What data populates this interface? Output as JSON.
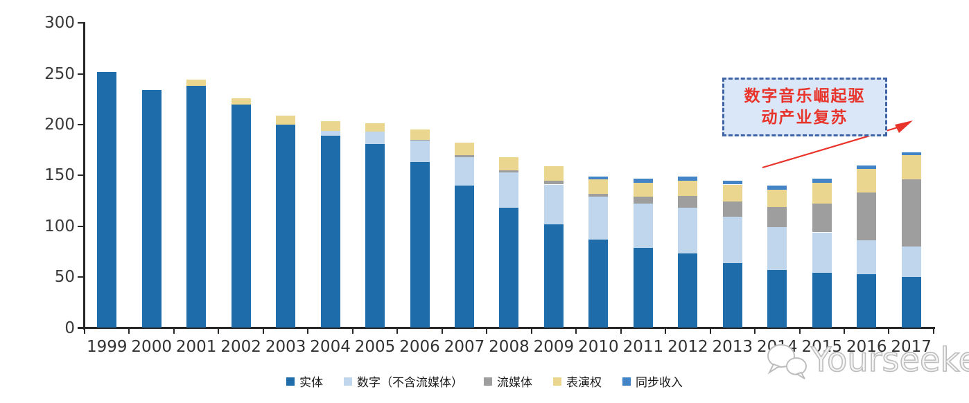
{
  "chart_data": {
    "type": "bar",
    "stacked": true,
    "title": "",
    "xlabel": "",
    "ylabel": "",
    "ylim": [
      0,
      300
    ],
    "yticks": [
      0,
      50,
      100,
      150,
      200,
      250,
      300
    ],
    "grid": "off",
    "legend_position": "bottom",
    "categories": [
      "1999",
      "2000",
      "2001",
      "2002",
      "2003",
      "2004",
      "2005",
      "2006",
      "2007",
      "2008",
      "2009",
      "2010",
      "2011",
      "2012",
      "2013",
      "2014",
      "2015",
      "2016",
      "2017"
    ],
    "series": [
      {
        "key": "physical",
        "name": "实体",
        "color": "#1F6CAB",
        "values": [
          252,
          234,
          238,
          220,
          200,
          189,
          181,
          163,
          140,
          118,
          102,
          87,
          79,
          73,
          64,
          57,
          54,
          53,
          50
        ]
      },
      {
        "key": "digital-ex-streaming",
        "name": "数字（不含流媒体）",
        "color": "#C0D6EC",
        "values": [
          0,
          0,
          0,
          0,
          0,
          5,
          12,
          21,
          28,
          35,
          39,
          42,
          43,
          45,
          45,
          42,
          40,
          33,
          30
        ]
      },
      {
        "key": "streaming",
        "name": "流媒体",
        "color": "#9E9E9E",
        "values": [
          0,
          0,
          0,
          0,
          0,
          0,
          0,
          1,
          2,
          2,
          4,
          3,
          7,
          12,
          15,
          20,
          28,
          47,
          66
        ]
      },
      {
        "key": "performance-rights",
        "name": "表演权",
        "color": "#EAD68F",
        "values": [
          0,
          0,
          6,
          6,
          9,
          9,
          8,
          10,
          12,
          13,
          14,
          14,
          14,
          15,
          17,
          17,
          21,
          23,
          24
        ]
      },
      {
        "key": "sync-revenue",
        "name": "同步收入",
        "color": "#4384C6",
        "values": [
          0,
          0,
          0,
          0,
          0,
          0,
          0,
          0,
          0,
          0,
          0,
          3,
          4,
          4,
          4,
          4,
          4,
          4,
          3
        ]
      }
    ]
  },
  "annotation": {
    "line1": "数字音乐崛起驱",
    "line2": "动产业复苏",
    "text_color": "#E8342A",
    "border_color": "#3F63A7",
    "fill_color": "#D9E7F8",
    "arrow_color": "#E8342A"
  },
  "watermark": {
    "text": "Yourseeker",
    "color": "#BDBDBD"
  },
  "axis_color": "#262626"
}
